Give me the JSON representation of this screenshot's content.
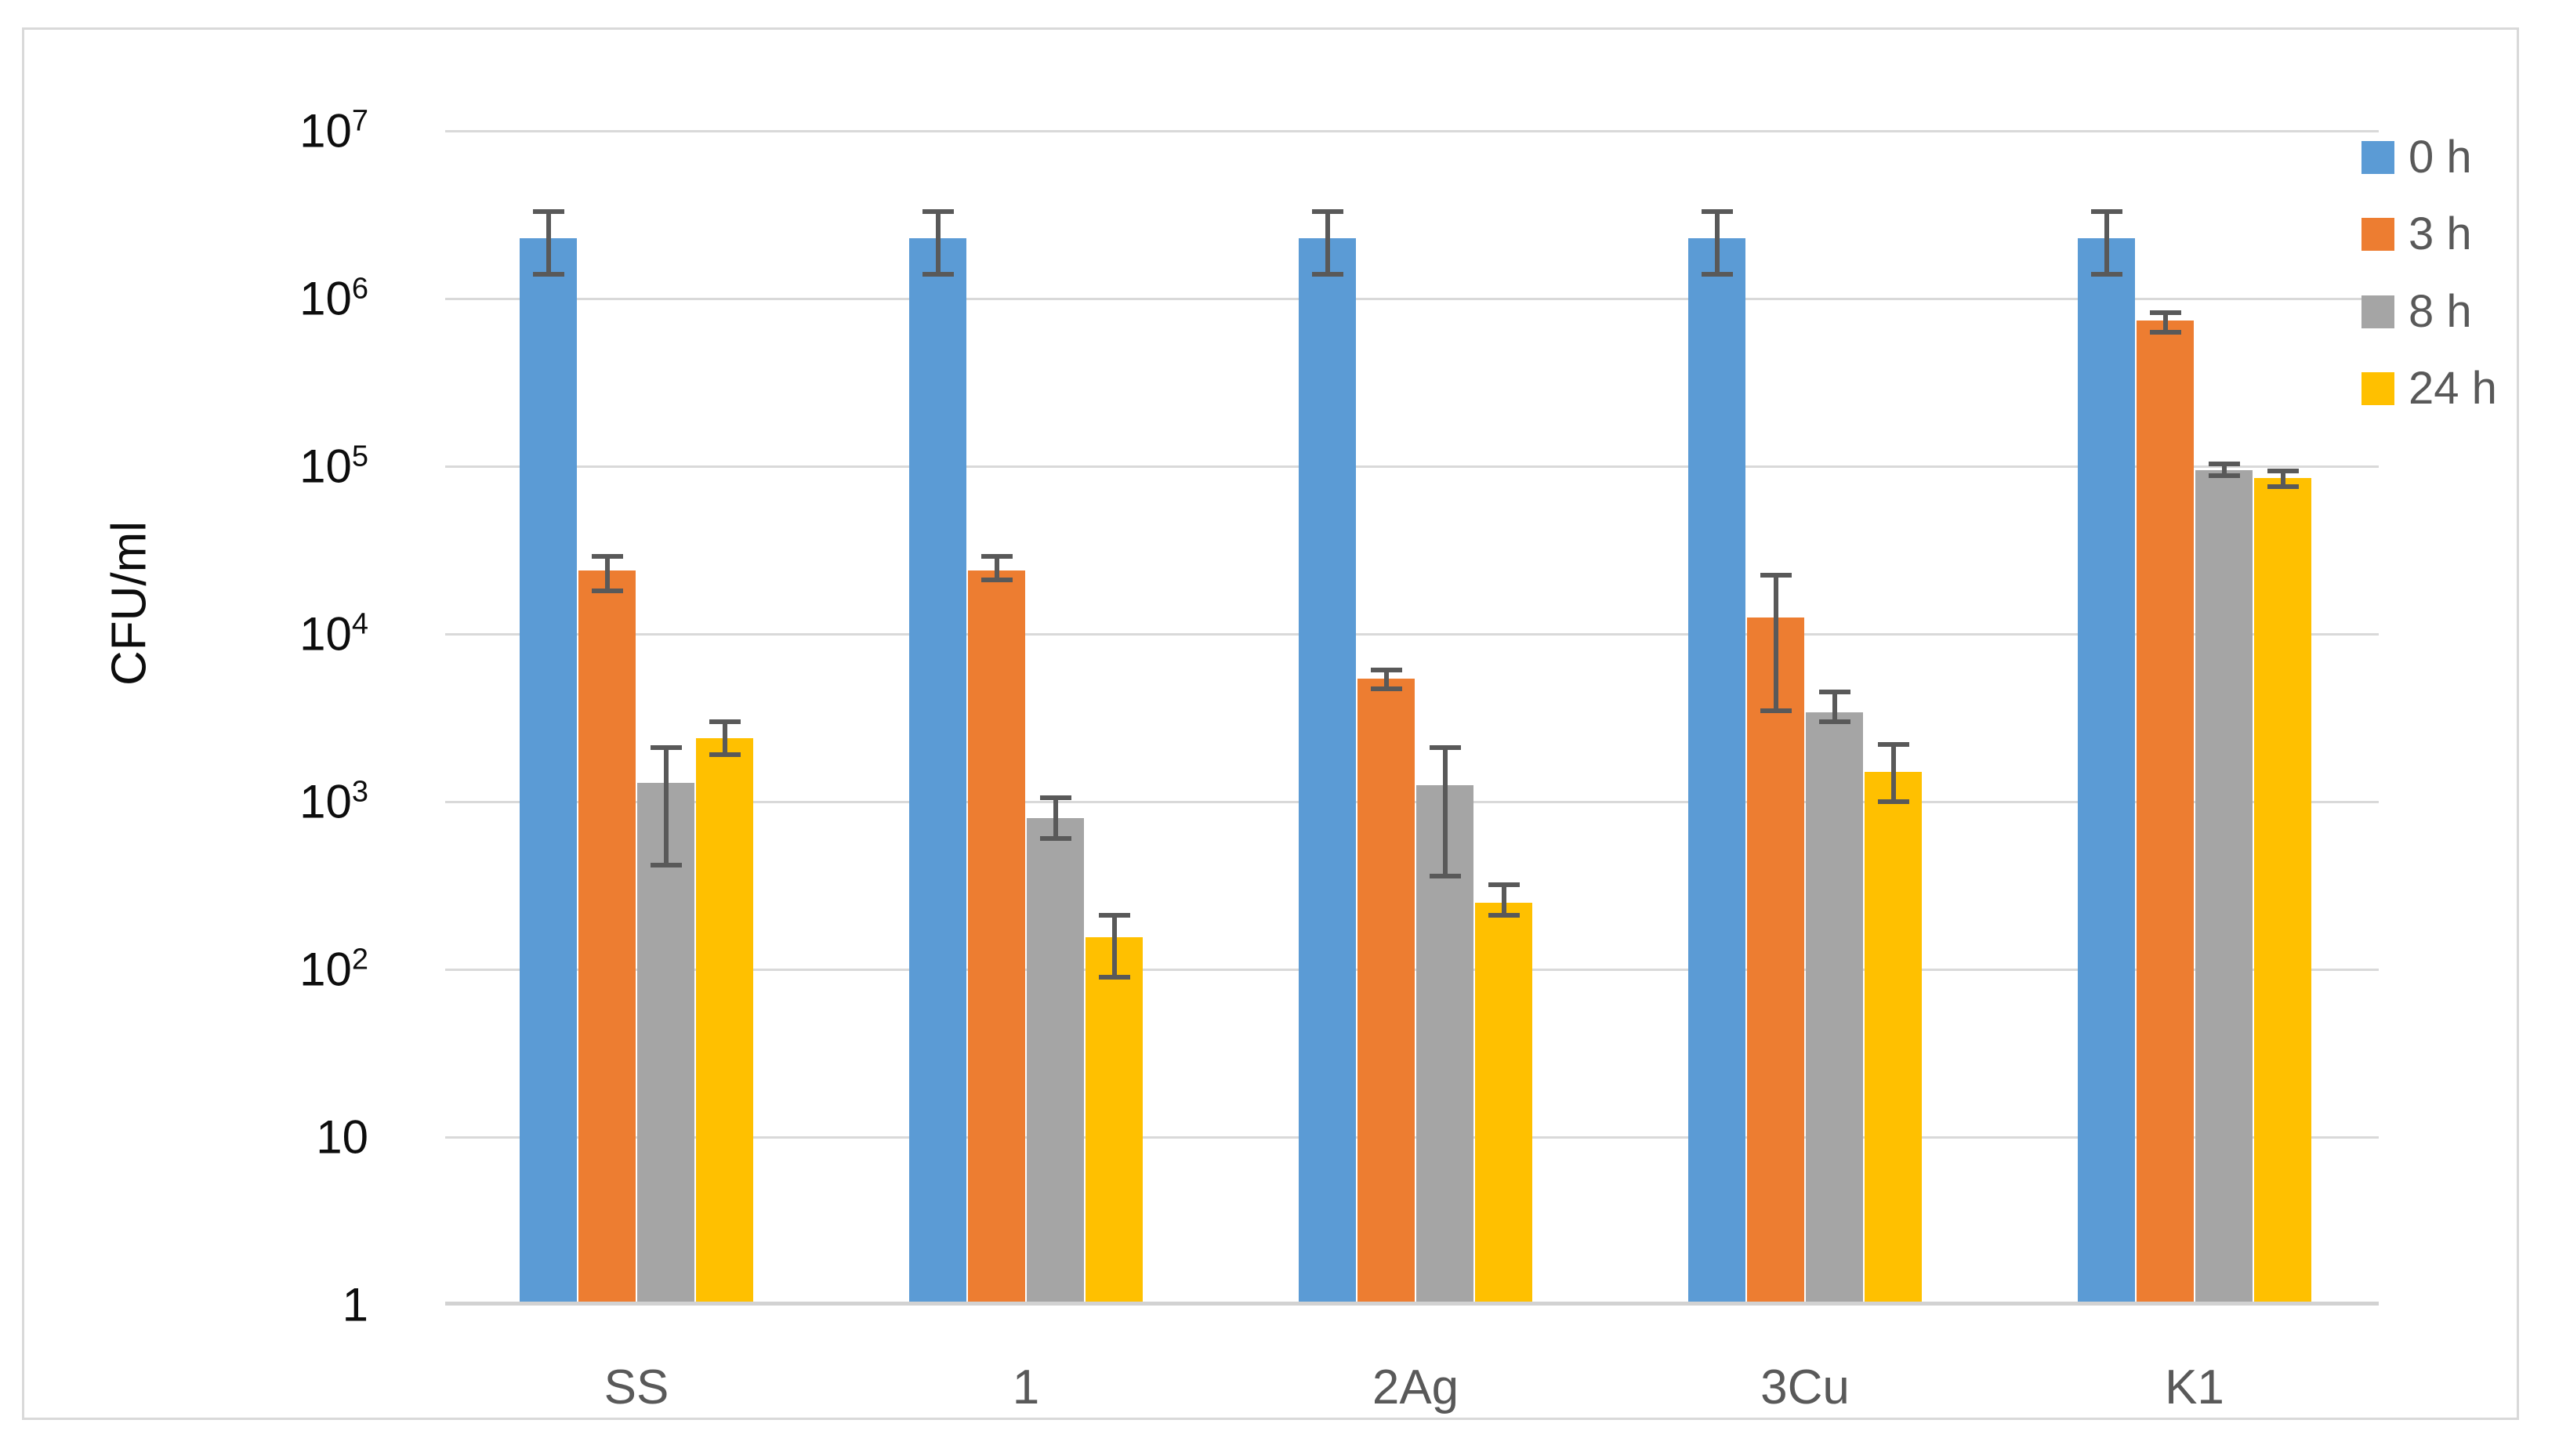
{
  "chart_data": {
    "type": "bar",
    "scale": "log10",
    "title": "",
    "ylabel": "CFU/ml",
    "xlabel": "",
    "ylim": [
      1,
      10000000
    ],
    "grid": true,
    "legend_position": "top-right",
    "y_ticks": [
      {
        "exp": 7,
        "text": "10",
        "sup": "7"
      },
      {
        "exp": 6,
        "text": "10",
        "sup": "6"
      },
      {
        "exp": 5,
        "text": "10",
        "sup": "5"
      },
      {
        "exp": 4,
        "text": "10",
        "sup": "4"
      },
      {
        "exp": 3,
        "text": "10",
        "sup": "3"
      },
      {
        "exp": 2,
        "text": "10",
        "sup": "2"
      },
      {
        "exp": 1,
        "text": "10",
        "sup": ""
      },
      {
        "exp": 0,
        "text": "1",
        "sup": ""
      }
    ],
    "categories": [
      "SS",
      "1",
      "2Ag",
      "3Cu",
      "K1"
    ],
    "series": [
      {
        "name": "0 h",
        "color": "#5B9BD5",
        "values": [
          2300000,
          2300000,
          2300000,
          2300000,
          2300000
        ],
        "err_high": [
          3300000,
          3300000,
          3300000,
          3300000,
          3300000
        ],
        "err_low": [
          1400000,
          1400000,
          1400000,
          1400000,
          1400000
        ]
      },
      {
        "name": "3 h",
        "color": "#ED7D31",
        "values": [
          24000,
          24000,
          5400,
          12500,
          740000
        ],
        "err_high": [
          29000,
          29000,
          6100,
          22500,
          820000
        ],
        "err_low": [
          18000,
          21000,
          4700,
          3500,
          630000
        ]
      },
      {
        "name": "8 h",
        "color": "#A5A5A5",
        "values": [
          1300,
          800,
          1250,
          3400,
          95000
        ],
        "err_high": [
          2100,
          1050,
          2100,
          4500,
          103000
        ],
        "err_low": [
          420,
          600,
          360,
          3000,
          88000
        ]
      },
      {
        "name": "24 h",
        "color": "#FFC000",
        "values": [
          2400,
          155,
          250,
          1500,
          85000
        ],
        "err_high": [
          3000,
          210,
          320,
          2200,
          94000
        ],
        "err_low": [
          1900,
          90,
          210,
          1000,
          76000
        ]
      }
    ]
  }
}
